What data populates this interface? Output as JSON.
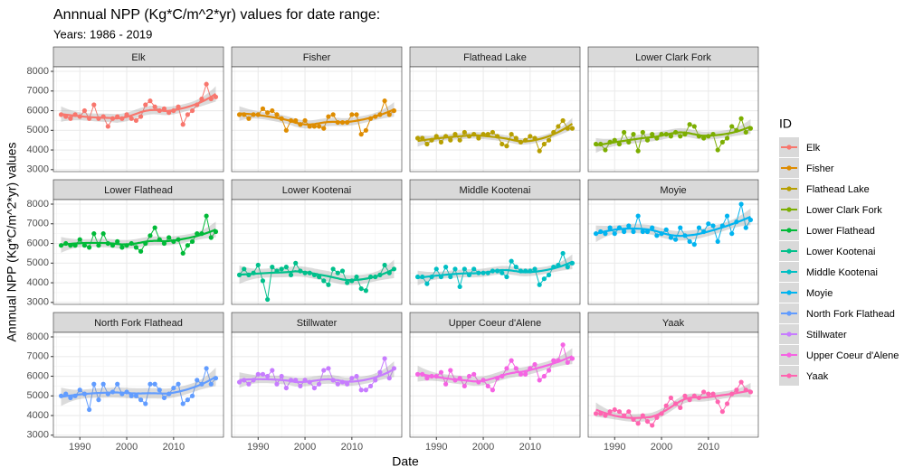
{
  "chart_data": {
    "type": "line",
    "title": "Annnual NPP (Kg*C/m^2*yr) values for date range:",
    "subtitle": "Years: 1986 - 2019",
    "x_label": "Date",
    "y_label": "Annnual NPP (Kg*C/m^2*yr) values",
    "legend_title": "ID",
    "legend_position": "right",
    "grid": true,
    "smooth": true,
    "x": [
      1986,
      1987,
      1988,
      1989,
      1990,
      1991,
      1992,
      1993,
      1994,
      1995,
      1996,
      1997,
      1998,
      1999,
      2000,
      2001,
      2002,
      2003,
      2004,
      2005,
      2006,
      2007,
      2008,
      2009,
      2010,
      2011,
      2012,
      2013,
      2014,
      2015,
      2016,
      2017,
      2018,
      2019
    ],
    "xlim": [
      1984.35,
      2020.65
    ],
    "xticks": [
      1990,
      2000,
      2010
    ],
    "ylim": [
      2900,
      8230
    ],
    "yticks": [
      3000,
      4000,
      5000,
      6000,
      7000,
      8000
    ],
    "series": [
      {
        "name": "Elk",
        "color": "#F8766D",
        "values": [
          5800,
          5700,
          5600,
          5800,
          5700,
          6000,
          5600,
          6300,
          5600,
          5700,
          5200,
          5600,
          5700,
          5600,
          5800,
          5600,
          5500,
          5700,
          6300,
          6500,
          6200,
          6000,
          6100,
          5900,
          6000,
          6200,
          5300,
          5800,
          6000,
          6300,
          6600,
          7350,
          6600,
          6700
        ]
      },
      {
        "name": "Fisher",
        "color": "#DE8C00",
        "values": [
          5800,
          5800,
          5600,
          5800,
          5800,
          6100,
          5900,
          6000,
          5800,
          5600,
          5000,
          5500,
          5500,
          5300,
          5500,
          5200,
          5200,
          5200,
          5100,
          5700,
          5800,
          5400,
          5400,
          5400,
          5800,
          5800,
          4800,
          5000,
          5600,
          5700,
          5800,
          6500,
          5800,
          6000
        ]
      },
      {
        "name": "Flathead Lake",
        "color": "#B79F00",
        "values": [
          4600,
          4600,
          4300,
          4500,
          4700,
          4400,
          4700,
          4500,
          4800,
          4500,
          4900,
          4700,
          4800,
          4600,
          4800,
          4800,
          4900,
          4700,
          4300,
          4200,
          4800,
          4600,
          4400,
          4500,
          4700,
          4600,
          3950,
          4300,
          4500,
          4900,
          5200,
          5500,
          5100,
          5100
        ]
      },
      {
        "name": "Lower Clark Fork",
        "color": "#7CAE00",
        "values": [
          4300,
          4300,
          4000,
          4400,
          4500,
          4300,
          4900,
          4400,
          4800,
          3950,
          4900,
          4500,
          4800,
          4600,
          4800,
          4800,
          4700,
          4900,
          4700,
          4800,
          5300,
          5200,
          4700,
          4600,
          4700,
          4800,
          4000,
          4400,
          4600,
          5200,
          5000,
          5600,
          4900,
          5100
        ]
      },
      {
        "name": "Lower Flathead",
        "color": "#00BA38",
        "values": [
          5900,
          6000,
          5900,
          5900,
          6200,
          5900,
          5800,
          6500,
          5900,
          6500,
          6000,
          5900,
          6100,
          5800,
          5900,
          6000,
          5800,
          5600,
          6000,
          6400,
          6800,
          6200,
          6000,
          6300,
          6100,
          6200,
          5500,
          5900,
          6100,
          6500,
          6500,
          7400,
          6300,
          6600
        ]
      },
      {
        "name": "Lower Kootenai",
        "color": "#00C08B",
        "values": [
          4400,
          4700,
          4400,
          4500,
          4900,
          4100,
          3150,
          4800,
          4600,
          4700,
          4800,
          4400,
          5000,
          4600,
          4500,
          4500,
          4400,
          4300,
          4100,
          3900,
          4700,
          4500,
          4600,
          4000,
          4100,
          4300,
          3700,
          3600,
          4300,
          4300,
          4400,
          4900,
          4500,
          4700
        ]
      },
      {
        "name": "Middle Kootenai",
        "color": "#00BFC4",
        "values": [
          4300,
          4300,
          3950,
          4300,
          4700,
          4300,
          4800,
          4300,
          4700,
          3800,
          4700,
          4400,
          4700,
          4500,
          4500,
          4500,
          4600,
          4600,
          4500,
          4300,
          5100,
          4800,
          4600,
          4600,
          4600,
          4700,
          3900,
          4200,
          4400,
          4800,
          4900,
          5500,
          4800,
          5000
        ]
      },
      {
        "name": "Moyie",
        "color": "#00B4F0",
        "values": [
          6500,
          6600,
          6500,
          6800,
          6500,
          6800,
          6600,
          6900,
          6600,
          7400,
          6600,
          6600,
          6800,
          6400,
          6500,
          6700,
          6300,
          6200,
          6800,
          6400,
          6100,
          5950,
          6800,
          6600,
          7000,
          6900,
          6100,
          6900,
          7400,
          6500,
          7100,
          8000,
          6800,
          7200
        ]
      },
      {
        "name": "North Fork Flathead",
        "color": "#619CFF",
        "values": [
          5000,
          5100,
          4900,
          5000,
          5300,
          5100,
          4300,
          5600,
          4800,
          5600,
          5100,
          5200,
          5600,
          5100,
          5200,
          5000,
          5000,
          4800,
          4600,
          5600,
          5600,
          5300,
          4900,
          5100,
          5400,
          5600,
          4600,
          4800,
          5000,
          5800,
          5600,
          6400,
          5600,
          5900
        ]
      },
      {
        "name": "Stillwater",
        "color": "#C77CFF",
        "values": [
          5700,
          5800,
          5600,
          5800,
          6100,
          6100,
          6000,
          6300,
          5600,
          6000,
          5400,
          5800,
          5800,
          5500,
          5800,
          5700,
          5400,
          5600,
          6300,
          6400,
          5800,
          5600,
          5700,
          5600,
          5900,
          6000,
          5300,
          5300,
          5500,
          5800,
          6200,
          6900,
          5900,
          6400
        ]
      },
      {
        "name": "Upper Coeur d'Alene",
        "color": "#F564E3",
        "values": [
          6100,
          6100,
          5900,
          6000,
          6000,
          6200,
          5600,
          6300,
          5800,
          5900,
          5500,
          6000,
          6100,
          5700,
          5800,
          5500,
          5300,
          5900,
          6000,
          6400,
          6800,
          6400,
          6100,
          6100,
          6400,
          6600,
          5800,
          6000,
          6300,
          6800,
          6800,
          7600,
          6700,
          6900
        ]
      },
      {
        "name": "Yaak",
        "color": "#FF64B0",
        "values": [
          4100,
          4100,
          4000,
          4200,
          4300,
          4200,
          4000,
          4200,
          3800,
          3600,
          4000,
          3700,
          3500,
          3900,
          4100,
          4500,
          4900,
          4600,
          4400,
          5000,
          4800,
          5000,
          4900,
          5200,
          5100,
          5100,
          4700,
          4200,
          4600,
          5100,
          5300,
          5700,
          5300,
          5200
        ]
      }
    ]
  }
}
